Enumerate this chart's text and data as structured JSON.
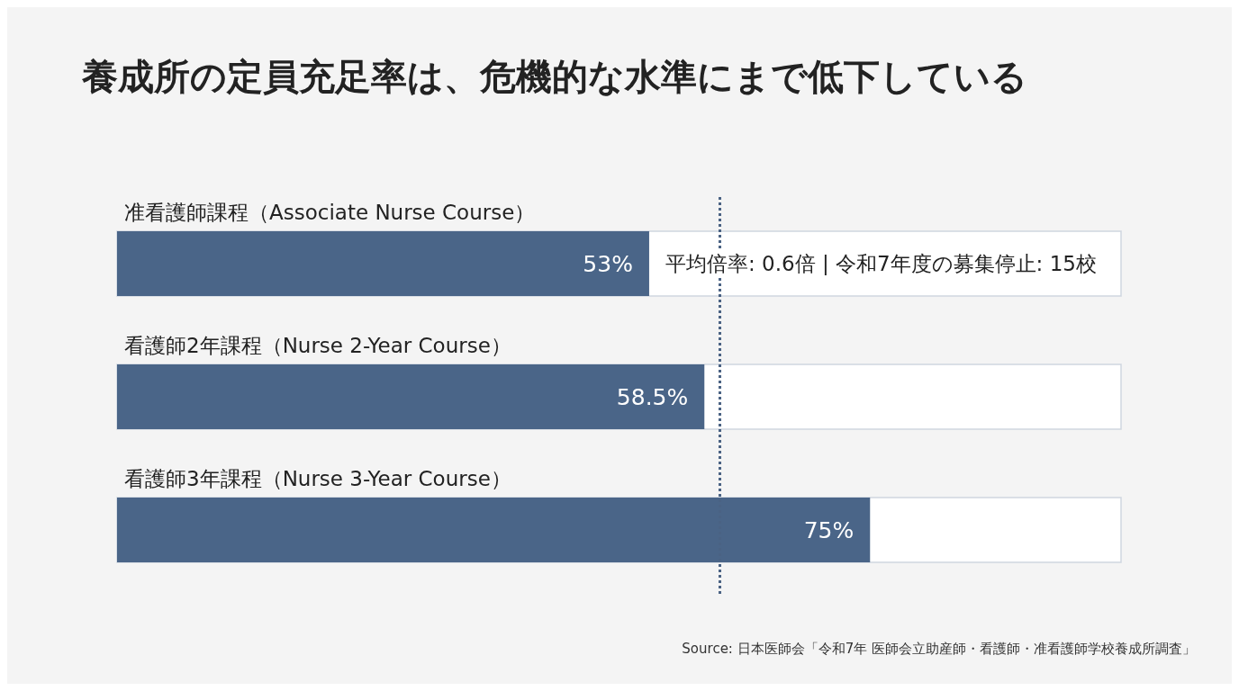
{
  "chart_data": {
    "type": "bar",
    "orientation": "horizontal",
    "title": "養成所の定員充足率は、危機的な水準にまで低下している",
    "categories": [
      "准看護師課程（Associate Nurse Course）",
      "看護師2年課程（Nurse 2-Year Course）",
      "看護師3年課程（Nurse 3-Year Course）"
    ],
    "values": [
      53,
      58.5,
      75
    ],
    "value_labels": [
      "53%",
      "58.5%",
      "75%"
    ],
    "color": "#4a6588",
    "xlim": [
      0,
      100
    ],
    "tick_labels": false,
    "grid": false,
    "ref_lines": [
      {
        "axis": "x",
        "value": 60,
        "line_style": "dotted",
        "color": "#4a6283"
      }
    ],
    "annotations": [
      "平均倍率: 0.6倍 | 令和7年度の募集停止: 15校",
      "Source: 日本医師会「令和7年 医師会立助産師・看護師・准看護師学校養成所調査」"
    ]
  }
}
